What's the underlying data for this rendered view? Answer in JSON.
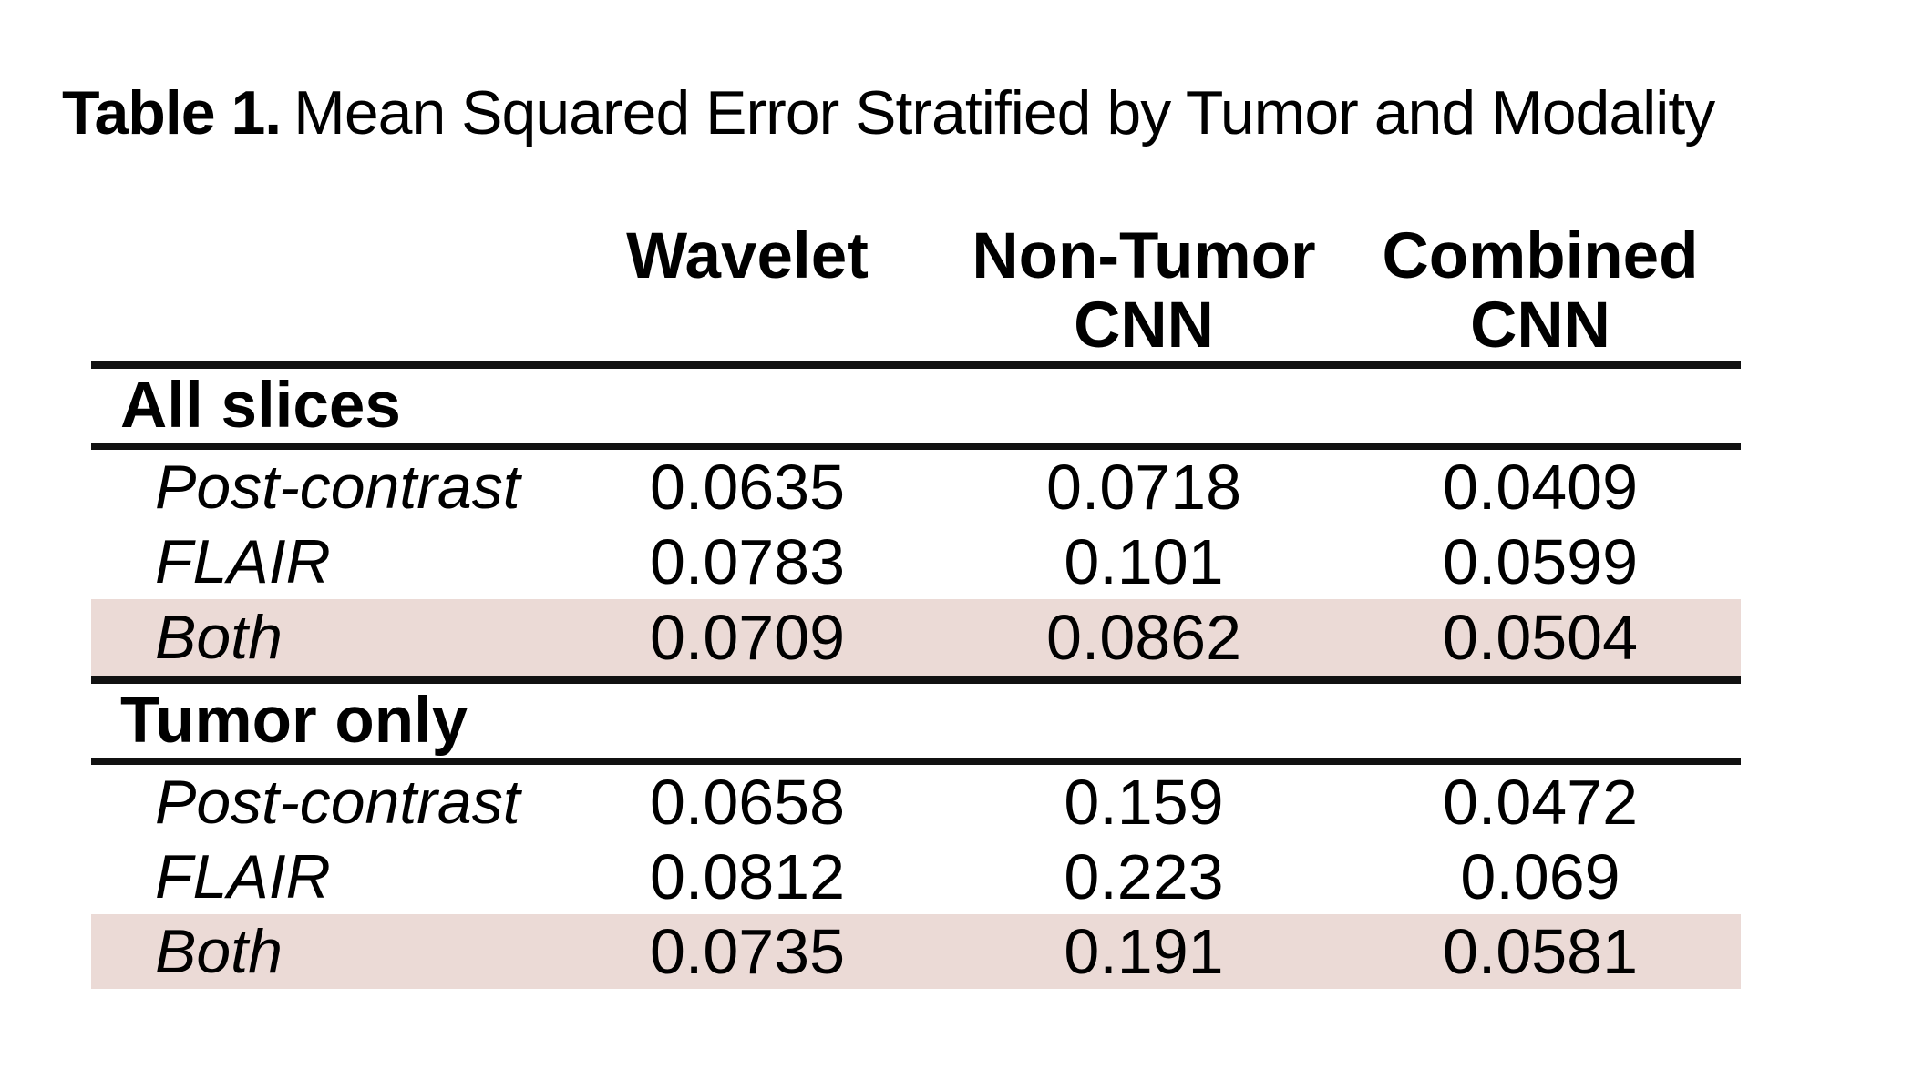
{
  "caption": {
    "label": "Table 1.",
    "text": "Mean Squared Error Stratified by Tumor and Modality"
  },
  "table": {
    "columns": [
      {
        "line1": "Wavelet",
        "line2": ""
      },
      {
        "line1": "Non-Tumor",
        "line2": "CNN"
      },
      {
        "line1": "Combined",
        "line2": "CNN"
      }
    ],
    "sections": [
      {
        "header": "All slices",
        "rows": [
          {
            "label": "Post-contrast",
            "values": [
              "0.0635",
              "0.0718",
              "0.0409"
            ],
            "highlight": false
          },
          {
            "label": "FLAIR",
            "values": [
              "0.0783",
              "0.101",
              "0.0599"
            ],
            "highlight": false
          },
          {
            "label": "Both",
            "values": [
              "0.0709",
              "0.0862",
              "0.0504"
            ],
            "highlight": true
          }
        ]
      },
      {
        "header": "Tumor only",
        "rows": [
          {
            "label": "Post-contrast",
            "values": [
              "0.0658",
              "0.159",
              "0.0472"
            ],
            "highlight": false
          },
          {
            "label": "FLAIR",
            "values": [
              "0.0812",
              "0.223",
              "0.069"
            ],
            "highlight": false
          },
          {
            "label": "Both",
            "values": [
              "0.0735",
              "0.191",
              "0.0581"
            ],
            "highlight": true
          }
        ]
      }
    ]
  },
  "chart_data": {
    "type": "table",
    "title": "Table 1. Mean Squared Error Stratified by Tumor and Modality",
    "columns": [
      "",
      "Wavelet",
      "Non-Tumor CNN",
      "Combined CNN"
    ],
    "rows": [
      [
        "All slices",
        "",
        "",
        ""
      ],
      [
        "Post-contrast",
        0.0635,
        0.0718,
        0.0409
      ],
      [
        "FLAIR",
        0.0783,
        0.101,
        0.0599
      ],
      [
        "Both",
        0.0709,
        0.0862,
        0.0504
      ],
      [
        "Tumor only",
        "",
        "",
        ""
      ],
      [
        "Post-contrast",
        0.0658,
        0.159,
        0.0472
      ],
      [
        "FLAIR",
        0.0812,
        0.223,
        0.069
      ],
      [
        "Both",
        0.0735,
        0.191,
        0.0581
      ]
    ]
  },
  "colors": {
    "highlight_row": "#EBDAD6",
    "rule_line": "#111111",
    "text": "#000000",
    "background": "#FFFFFF"
  }
}
